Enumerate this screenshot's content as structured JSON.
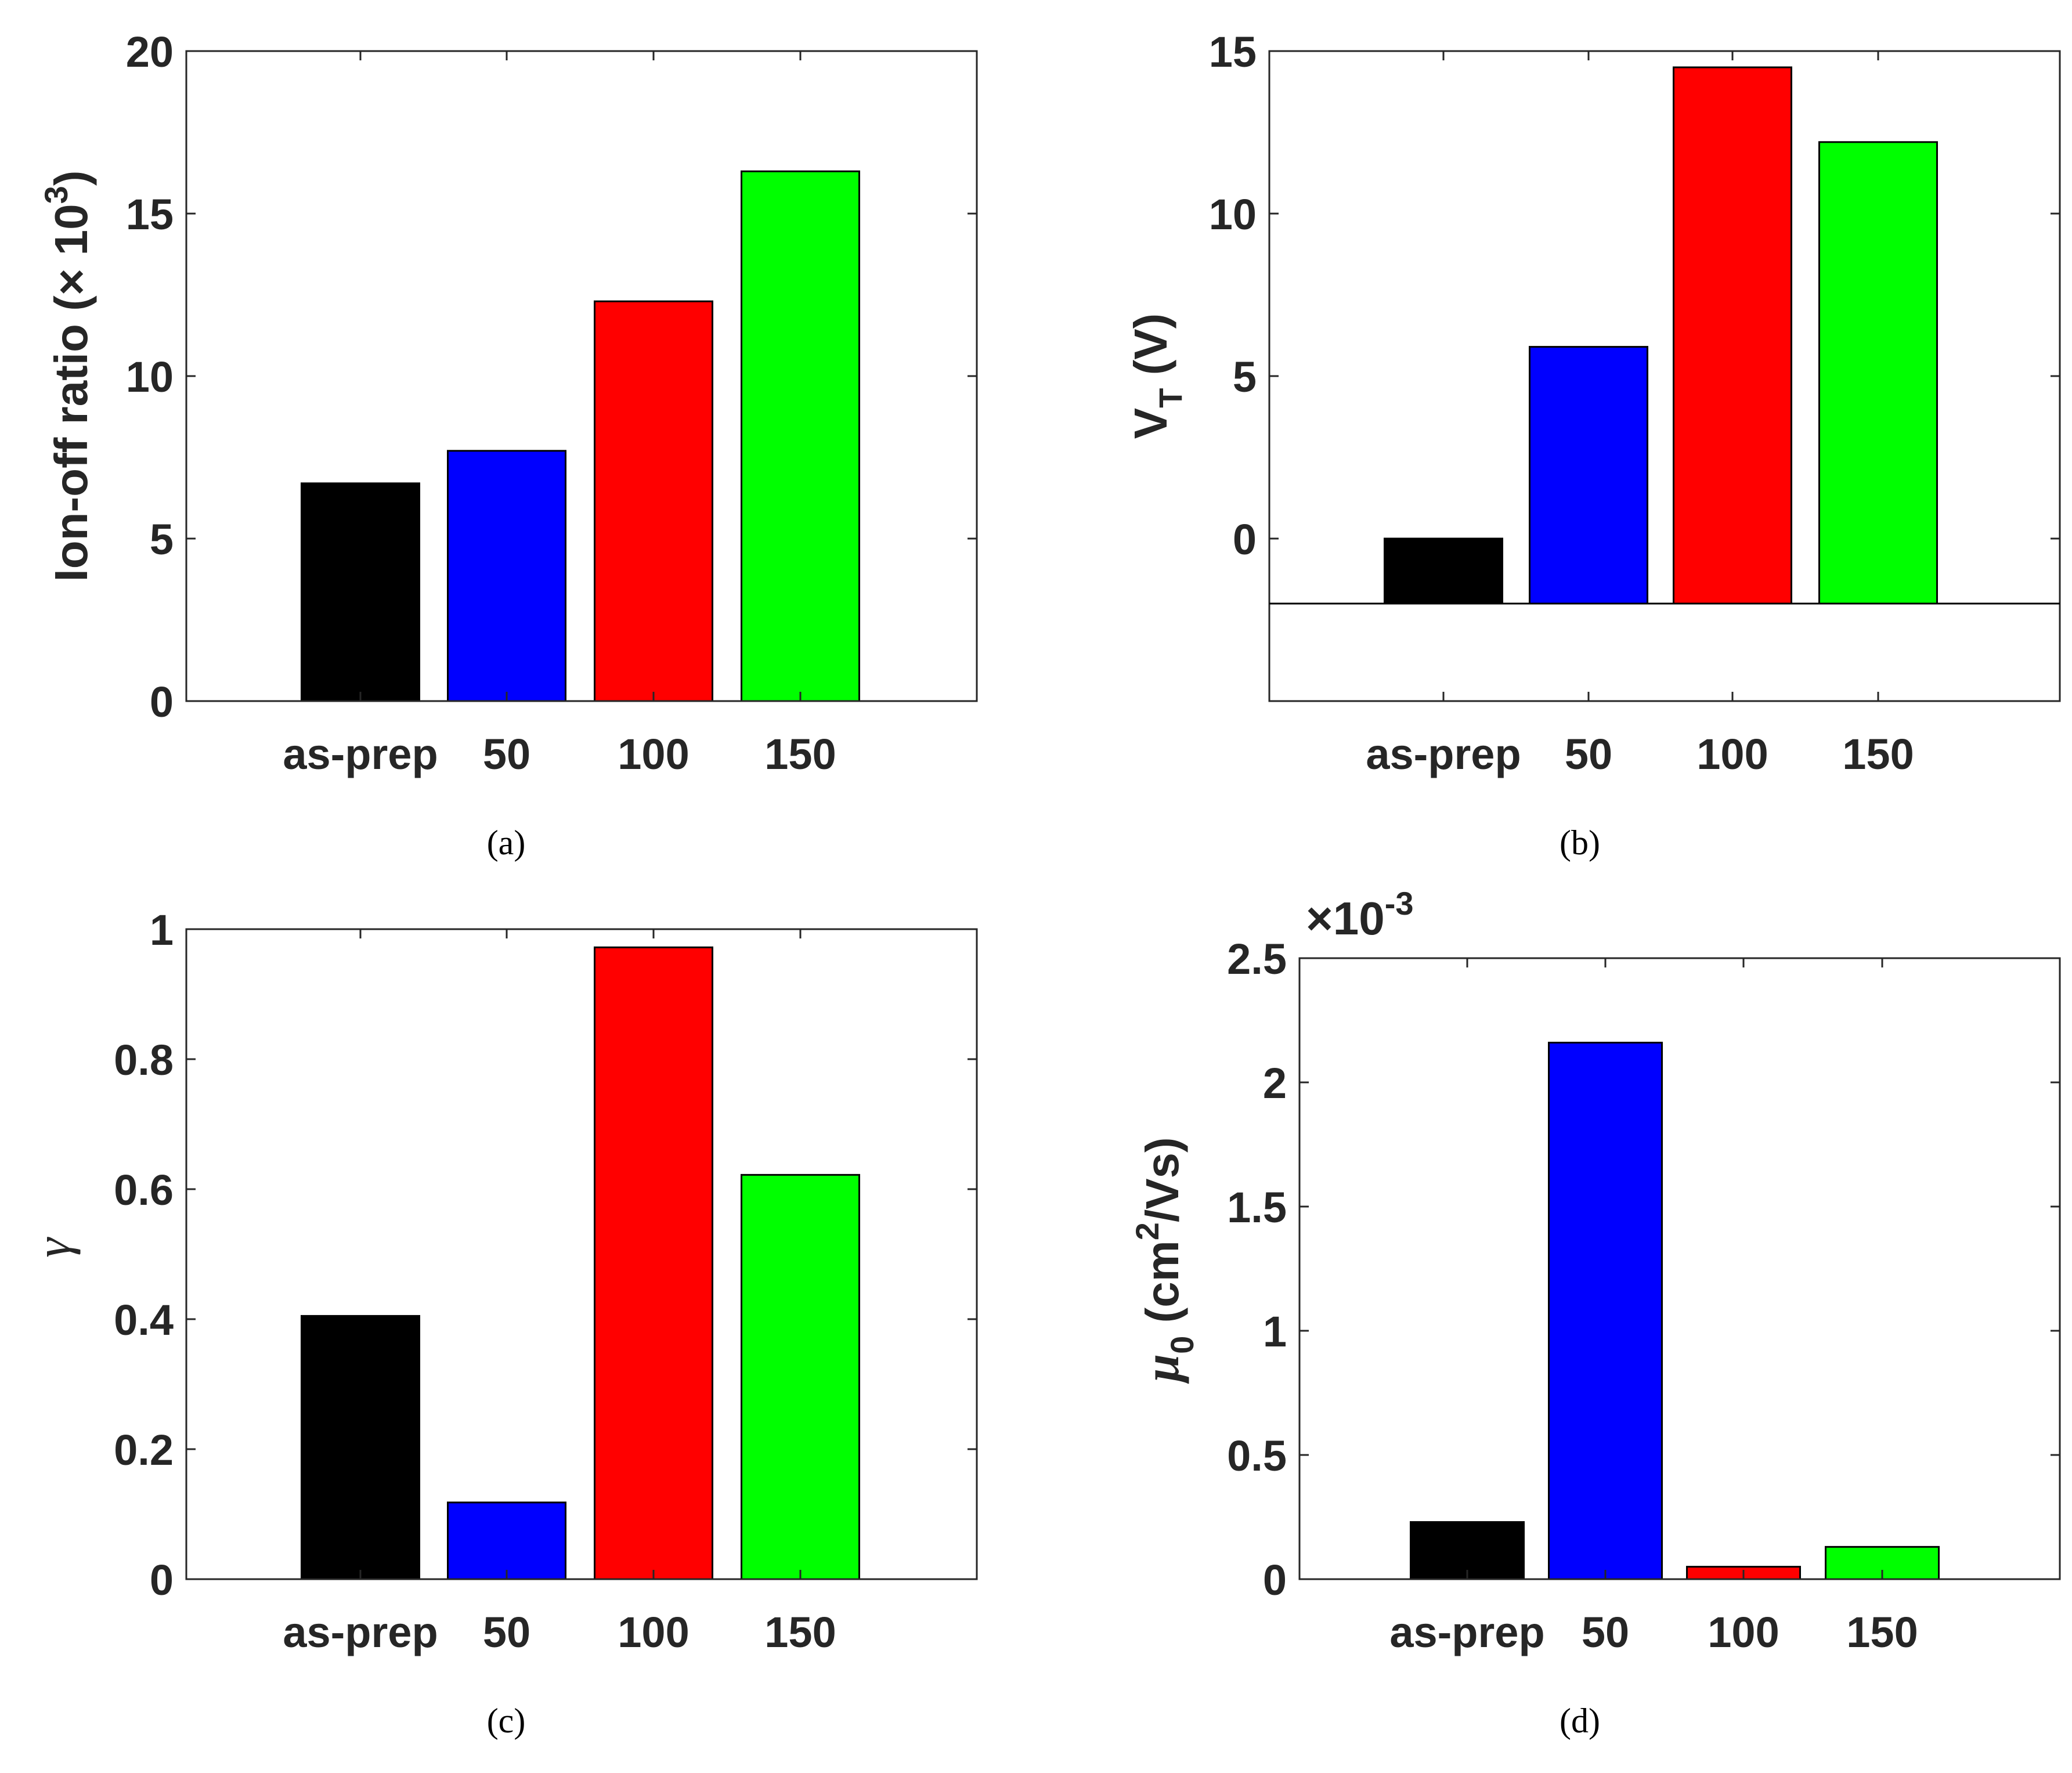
{
  "figure": {
    "panels": [
      {
        "id": "a",
        "caption": "(a)"
      },
      {
        "id": "b",
        "caption": "(b)"
      },
      {
        "id": "c",
        "caption": "(c)"
      },
      {
        "id": "d",
        "caption": "(d)"
      }
    ]
  },
  "chart_data": [
    {
      "type": "bar",
      "panel": "a",
      "categories": [
        "as-prep",
        "50",
        "100",
        "150"
      ],
      "values": [
        6.7,
        7.7,
        12.3,
        16.3
      ],
      "colors": [
        "#000000",
        "#0000ff",
        "#ff0000",
        "#00ff00"
      ],
      "ylabel": "Ion-off ratio (",
      "ylabel_times": "×",
      "ylabel_base": " 10",
      "ylabel_sup": "3",
      "ylabel_close": ")",
      "ylim": [
        0,
        20
      ],
      "yticks": [
        0,
        5,
        10,
        15,
        20
      ],
      "ytick_labels": [
        "0",
        "5",
        "10",
        "15",
        "20"
      ],
      "baseline": 0
    },
    {
      "type": "bar",
      "panel": "b",
      "categories": [
        "as-prep",
        "50",
        "100",
        "150"
      ],
      "values": [
        0.0,
        5.9,
        14.5,
        12.2
      ],
      "colors": [
        "#000000",
        "#0000ff",
        "#ff0000",
        "#00ff00"
      ],
      "ylabel": "V",
      "ylabel_sub": "T",
      "ylabel_rest": " (V)",
      "ylim": [
        -5,
        15
      ],
      "yticks": [
        0,
        5,
        10,
        15
      ],
      "ytick_labels": [
        "0",
        "5",
        "10",
        "15"
      ],
      "baseline": -2
    },
    {
      "type": "bar",
      "panel": "c",
      "categories": [
        "as-prep",
        "50",
        "100",
        "150"
      ],
      "values": [
        0.405,
        0.118,
        0.972,
        0.622
      ],
      "colors": [
        "#000000",
        "#0000ff",
        "#ff0000",
        "#00ff00"
      ],
      "ylabel": "γ",
      "ylim": [
        0,
        1
      ],
      "yticks": [
        0,
        0.2,
        0.4,
        0.6,
        0.8,
        1
      ],
      "ytick_labels": [
        "0",
        "0.2",
        "0.4",
        "0.6",
        "0.8",
        "1"
      ],
      "baseline": 0
    },
    {
      "type": "bar",
      "panel": "d",
      "categories": [
        "as-prep",
        "50",
        "100",
        "150"
      ],
      "values": [
        0.23,
        2.16,
        0.05,
        0.13
      ],
      "colors": [
        "#000000",
        "#0000ff",
        "#ff0000",
        "#00ff00"
      ],
      "ylabel": "μ",
      "ylabel_sub": "0",
      "ylabel_rest": " (cm",
      "ylabel_sup": "2",
      "ylabel_close": "/Vs)",
      "ylim": [
        0,
        2.5
      ],
      "yticks": [
        0,
        0.5,
        1,
        1.5,
        2,
        2.5
      ],
      "ytick_labels": [
        "0",
        "0.5",
        "1",
        "1.5",
        "2",
        "2.5"
      ],
      "exponent_label": "×10",
      "exponent_sup": "-3",
      "baseline": 0
    }
  ]
}
